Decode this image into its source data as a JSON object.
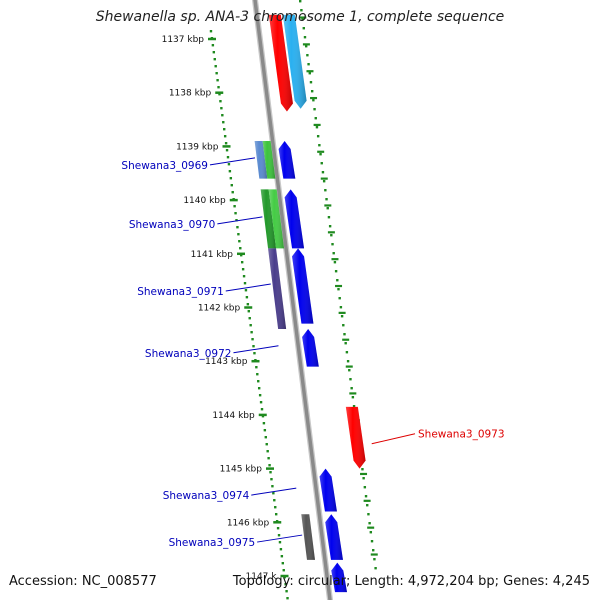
{
  "title": "Shewanella sp. ANA-3 chromosome 1, complete sequence",
  "footer": {
    "accession": "Accession: NC_008577",
    "summary": "Topology: circular; Length: 4,972,204 bp; Genes: 4,245"
  },
  "ticks": [
    {
      "label": "1137 kbp",
      "kbp": 1137
    },
    {
      "label": "1138 kbp",
      "kbp": 1138
    },
    {
      "label": "1139 kbp",
      "kbp": 1139
    },
    {
      "label": "1140 kbp",
      "kbp": 1140
    },
    {
      "label": "1141 kbp",
      "kbp": 1141
    },
    {
      "label": "1142 kbp",
      "kbp": 1142
    },
    {
      "label": "1143 kbp",
      "kbp": 1143
    },
    {
      "label": "1144 kbp",
      "kbp": 1144
    },
    {
      "label": "1145 kbp",
      "kbp": 1145
    },
    {
      "label": "1146 kbp",
      "kbp": 1146
    },
    {
      "label": "1147 k",
      "kbp": 1147
    }
  ],
  "genes": [
    {
      "label": "",
      "start_kbp": 1136.55,
      "end_kbp": 1138.35,
      "strand": "reverse",
      "color": "#ff0000"
    },
    {
      "label": "",
      "start_kbp": 1136.55,
      "end_kbp": 1138.3,
      "strand": "reverse",
      "color": "#2ab0f0"
    },
    {
      "label": "Shewana3_0969",
      "start_kbp": 1138.9,
      "end_kbp": 1139.6,
      "strand": "forward",
      "color": "#0000ee"
    },
    {
      "label": "Shewana3_0970",
      "start_kbp": 1139.8,
      "end_kbp": 1140.9,
      "strand": "forward",
      "color": "#0000ee"
    },
    {
      "label": "Shewana3_0971",
      "start_kbp": 1140.9,
      "end_kbp": 1142.3,
      "strand": "forward",
      "color": "#0000ee"
    },
    {
      "label": "Shewana3_0972",
      "start_kbp": 1142.4,
      "end_kbp": 1143.1,
      "strand": "forward",
      "color": "#0000ee"
    },
    {
      "label": "Shewana3_0973",
      "start_kbp": 1143.85,
      "end_kbp": 1145.0,
      "strand": "reverse",
      "color": "#ff0000"
    },
    {
      "label": "Shewana3_0974",
      "start_kbp": 1145.0,
      "end_kbp": 1145.8,
      "strand": "forward",
      "color": "#0000ee"
    },
    {
      "label": "Shewana3_0975",
      "start_kbp": 1145.85,
      "end_kbp": 1146.7,
      "strand": "forward",
      "color": "#0000ee"
    },
    {
      "label": "",
      "start_kbp": 1146.75,
      "end_kbp": 1147.3,
      "strand": "forward",
      "color": "#0000ee"
    }
  ],
  "features": [
    {
      "start_kbp": 1138.9,
      "end_kbp": 1139.6,
      "color": "#5a8ad0",
      "ring": 1
    },
    {
      "start_kbp": 1138.9,
      "end_kbp": 1139.6,
      "color": "#3cc43c",
      "ring": 2
    },
    {
      "start_kbp": 1139.8,
      "end_kbp": 1140.9,
      "color": "#22992a",
      "ring": 1
    },
    {
      "start_kbp": 1139.8,
      "end_kbp": 1140.9,
      "color": "#44cc44",
      "ring": 2
    },
    {
      "start_kbp": 1140.9,
      "end_kbp": 1142.4,
      "color": "#4a3d8c",
      "ring": 1
    },
    {
      "start_kbp": 1145.85,
      "end_kbp": 1146.7,
      "color": "#555555",
      "ring": 1
    }
  ],
  "colors": {
    "backbone": "#8a8a8a",
    "tick_track": "#1f8a1f",
    "forward_label": "#0000bb",
    "reverse_label": "#dd0000"
  }
}
